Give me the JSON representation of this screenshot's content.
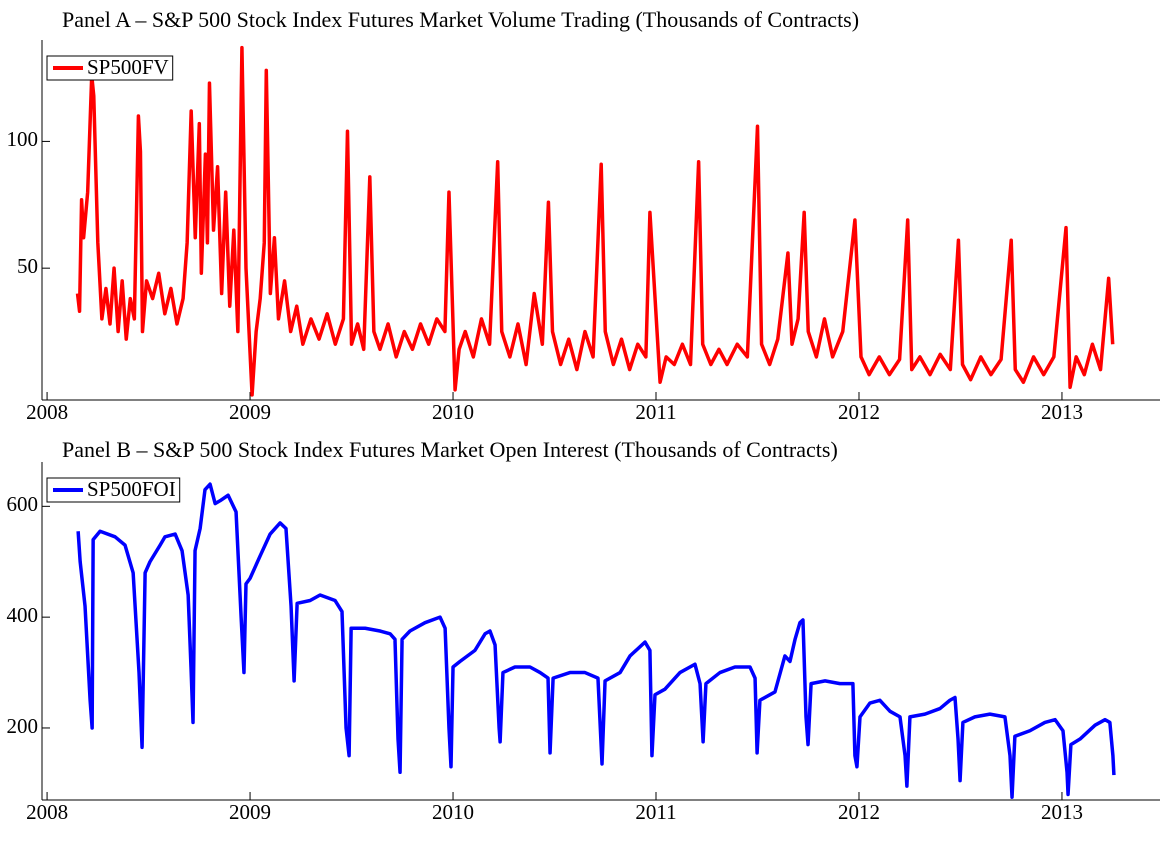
{
  "chart_data": [
    {
      "type": "line",
      "title": "Panel A – S&P 500 Stock Index Futures Market Volume Trading (Thousands of Contracts)",
      "x": [
        2008.15,
        2008.16,
        2008.17,
        2008.18,
        2008.2,
        2008.22,
        2008.23,
        2008.25,
        2008.27,
        2008.29,
        2008.31,
        2008.33,
        2008.35,
        2008.37,
        2008.39,
        2008.41,
        2008.43,
        2008.45,
        2008.46,
        2008.47,
        2008.49,
        2008.52,
        2008.55,
        2008.58,
        2008.61,
        2008.64,
        2008.67,
        2008.69,
        2008.71,
        2008.73,
        2008.75,
        2008.76,
        2008.78,
        2008.79,
        2008.8,
        2008.82,
        2008.84,
        2008.86,
        2008.88,
        2008.9,
        2008.92,
        2008.94,
        2008.96,
        2008.98,
        2009.01,
        2009.03,
        2009.05,
        2009.07,
        2009.08,
        2009.1,
        2009.12,
        2009.14,
        2009.17,
        2009.2,
        2009.23,
        2009.26,
        2009.3,
        2009.34,
        2009.38,
        2009.42,
        2009.46,
        2009.48,
        2009.5,
        2009.53,
        2009.56,
        2009.59,
        2009.61,
        2009.64,
        2009.68,
        2009.72,
        2009.76,
        2009.8,
        2009.84,
        2009.88,
        2009.92,
        2009.96,
        2009.98,
        2010.01,
        2010.03,
        2010.06,
        2010.1,
        2010.14,
        2010.18,
        2010.22,
        2010.24,
        2010.28,
        2010.32,
        2010.36,
        2010.4,
        2010.44,
        2010.47,
        2010.49,
        2010.53,
        2010.57,
        2010.61,
        2010.65,
        2010.69,
        2010.73,
        2010.75,
        2010.79,
        2010.83,
        2010.87,
        2010.91,
        2010.95,
        2010.97,
        2011.02,
        2011.05,
        2011.09,
        2011.13,
        2011.17,
        2011.21,
        2011.23,
        2011.27,
        2011.31,
        2011.35,
        2011.4,
        2011.45,
        2011.5,
        2011.52,
        2011.56,
        2011.6,
        2011.65,
        2011.67,
        2011.7,
        2011.73,
        2011.75,
        2011.79,
        2011.83,
        2011.87,
        2011.92,
        2011.98,
        2012.01,
        2012.05,
        2012.1,
        2012.15,
        2012.2,
        2012.24,
        2012.26,
        2012.3,
        2012.35,
        2012.4,
        2012.45,
        2012.49,
        2012.51,
        2012.55,
        2012.6,
        2012.65,
        2012.7,
        2012.75,
        2012.77,
        2012.81,
        2012.86,
        2012.91,
        2012.96,
        2013.02,
        2013.04,
        2013.07,
        2013.11,
        2013.15,
        2013.19,
        2013.23,
        2013.25
      ],
      "series": [
        {
          "name": "SP500FV",
          "color": "#ff0000",
          "values": [
            40,
            33,
            77,
            62,
            80,
            126,
            118,
            60,
            30,
            42,
            28,
            50,
            25,
            45,
            22,
            38,
            30,
            110,
            96,
            25,
            45,
            38,
            48,
            32,
            42,
            28,
            38,
            60,
            112,
            62,
            107,
            48,
            95,
            60,
            123,
            65,
            90,
            40,
            80,
            35,
            65,
            25,
            137,
            50,
            0,
            25,
            38,
            60,
            128,
            40,
            62,
            30,
            45,
            25,
            35,
            20,
            30,
            22,
            32,
            20,
            30,
            104,
            20,
            28,
            18,
            86,
            25,
            18,
            28,
            15,
            25,
            18,
            28,
            20,
            30,
            25,
            80,
            2,
            18,
            25,
            15,
            30,
            20,
            92,
            25,
            15,
            28,
            12,
            40,
            20,
            76,
            25,
            12,
            22,
            10,
            25,
            15,
            91,
            25,
            12,
            22,
            10,
            20,
            15,
            72,
            5,
            15,
            12,
            20,
            12,
            92,
            20,
            12,
            18,
            12,
            20,
            15,
            106,
            20,
            12,
            22,
            56,
            20,
            30,
            72,
            25,
            15,
            30,
            15,
            25,
            69,
            15,
            8,
            15,
            8,
            14,
            69,
            10,
            15,
            8,
            16,
            10,
            61,
            12,
            6,
            15,
            8,
            14,
            61,
            10,
            5,
            15,
            8,
            15,
            66,
            3,
            15,
            8,
            20,
            10,
            46,
            20
          ]
        }
      ],
      "xlim": [
        2007.975,
        2013.483
      ],
      "ylim": [
        -2,
        140
      ],
      "xticks": [
        2008,
        2009,
        2010,
        2011,
        2012,
        2013
      ],
      "yticks": [
        50,
        100
      ],
      "legend": "upper left"
    },
    {
      "type": "line",
      "title": "Panel B – S&P 500 Stock Index Futures Market Open Interest (Thousands of Contracts)",
      "x": [
        2008.153,
        2008.163,
        2008.187,
        2008.212,
        2008.222,
        2008.227,
        2008.261,
        2008.335,
        2008.384,
        2008.424,
        2008.453,
        2008.468,
        2008.483,
        2008.507,
        2008.557,
        2008.581,
        2008.631,
        2008.665,
        2008.695,
        2008.709,
        2008.719,
        2008.729,
        2008.754,
        2008.778,
        2008.803,
        2008.828,
        2008.852,
        2008.892,
        2008.931,
        2008.956,
        2008.97,
        2008.98,
        2009.0,
        2009.049,
        2009.099,
        2009.148,
        2009.177,
        2009.202,
        2009.217,
        2009.232,
        2009.296,
        2009.345,
        2009.419,
        2009.453,
        2009.473,
        2009.488,
        2009.498,
        2009.567,
        2009.64,
        2009.69,
        2009.714,
        2009.729,
        2009.739,
        2009.749,
        2009.788,
        2009.862,
        2009.936,
        2009.961,
        2009.98,
        2009.99,
        2010.0,
        2010.034,
        2010.108,
        2010.158,
        2010.182,
        2010.207,
        2010.227,
        2010.232,
        2010.246,
        2010.305,
        2010.379,
        2010.429,
        2010.468,
        2010.478,
        2010.493,
        2010.576,
        2010.65,
        2010.714,
        2010.734,
        2010.749,
        2010.823,
        2010.872,
        2010.946,
        2010.97,
        2010.98,
        2010.995,
        2011.044,
        2011.118,
        2011.192,
        2011.217,
        2011.232,
        2011.246,
        2011.315,
        2011.389,
        2011.463,
        2011.488,
        2011.498,
        2011.512,
        2011.586,
        2011.635,
        2011.66,
        2011.685,
        2011.709,
        2011.724,
        2011.739,
        2011.749,
        2011.764,
        2011.833,
        2011.906,
        2011.97,
        2011.98,
        2011.99,
        2012.005,
        2012.054,
        2012.103,
        2012.153,
        2012.202,
        2012.227,
        2012.236,
        2012.251,
        2012.325,
        2012.399,
        2012.448,
        2012.473,
        2012.488,
        2012.498,
        2012.512,
        2012.571,
        2012.645,
        2012.719,
        2012.744,
        2012.754,
        2012.768,
        2012.842,
        2012.916,
        2012.966,
        2013.005,
        2013.025,
        2013.03,
        2013.044,
        2013.089,
        2013.163,
        2013.212,
        2013.236,
        2013.251,
        2013.256
      ],
      "series": [
        {
          "name": "SP500FOI",
          "color": "#0000ff",
          "values": [
            555,
            500,
            420,
            250,
            200,
            540,
            555,
            545,
            530,
            480,
            300,
            165,
            480,
            500,
            530,
            545,
            550,
            520,
            440,
            310,
            210,
            520,
            560,
            630,
            640,
            605,
            610,
            620,
            590,
            400,
            300,
            460,
            470,
            510,
            550,
            570,
            560,
            420,
            285,
            425,
            430,
            440,
            430,
            410,
            200,
            150,
            380,
            380,
            375,
            370,
            360,
            180,
            120,
            360,
            375,
            390,
            400,
            380,
            200,
            130,
            310,
            320,
            340,
            370,
            375,
            350,
            200,
            175,
            300,
            310,
            310,
            300,
            290,
            155,
            290,
            300,
            300,
            290,
            135,
            285,
            300,
            330,
            355,
            340,
            150,
            260,
            270,
            300,
            315,
            280,
            175,
            280,
            300,
            310,
            310,
            290,
            155,
            250,
            265,
            330,
            320,
            360,
            390,
            395,
            220,
            170,
            280,
            285,
            280,
            280,
            150,
            130,
            220,
            245,
            250,
            230,
            220,
            150,
            95,
            220,
            225,
            235,
            250,
            255,
            180,
            105,
            210,
            220,
            225,
            220,
            150,
            75,
            185,
            195,
            210,
            215,
            195,
            120,
            80,
            170,
            180,
            205,
            215,
            210,
            150,
            115
          ]
        }
      ],
      "xlim": [
        2007.975,
        2013.483
      ],
      "ylim": [
        70,
        680
      ],
      "xticks": [
        2008,
        2009,
        2010,
        2011,
        2012,
        2013
      ],
      "yticks": [
        200,
        400,
        600
      ],
      "legend": "upper left"
    }
  ]
}
